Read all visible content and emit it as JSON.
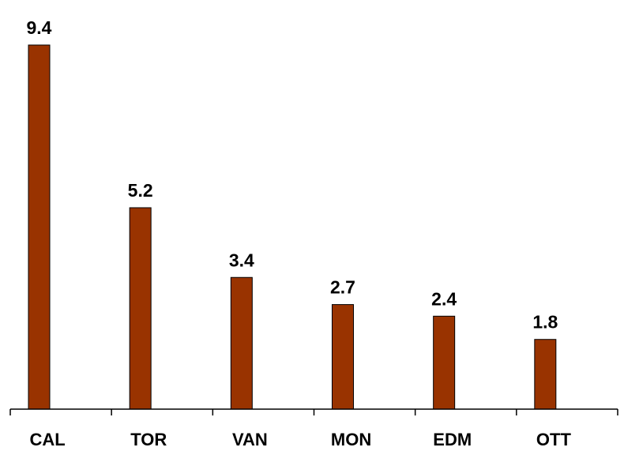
{
  "chart_data": {
    "type": "bar",
    "categories": [
      "CAL",
      "TOR",
      "VAN",
      "MON",
      "EDM",
      "OTT"
    ],
    "values": [
      9.4,
      5.2,
      3.4,
      2.7,
      2.4,
      1.8
    ],
    "value_labels": [
      "9.4",
      "5.2",
      "3.4",
      "2.7",
      "2.4",
      "1.8"
    ],
    "title": "",
    "xlabel": "",
    "ylabel": "",
    "ylim": [
      0,
      9.4
    ],
    "grid": false,
    "legend": "none",
    "bar_color": "#993300"
  }
}
